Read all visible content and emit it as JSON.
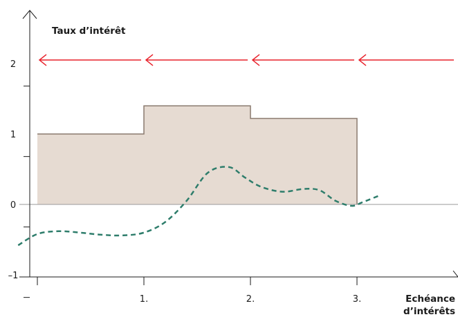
{
  "figure": {
    "y_axis_title": "Taux d’intérêt",
    "x_axis_title_line1": "Echéance",
    "x_axis_title_line2": "d’intérêts",
    "colors": {
      "axis": "#1a1a1a",
      "zero_line": "#999999",
      "area_fill": "#e6dbd2",
      "area_outline": "#8a7a6e",
      "arrow": "#e8202a",
      "dashed_curve": "#2e7d6b"
    }
  },
  "chart_data": {
    "type": "area",
    "y_ticks": [
      {
        "value": 2,
        "label": "2"
      },
      {
        "value": 1,
        "label": "1"
      },
      {
        "value": 0,
        "label": "0"
      },
      {
        "value": -1,
        "label": "–1"
      }
    ],
    "x_ticks": [
      {
        "value": 1,
        "label": "1."
      },
      {
        "value": 2,
        "label": "2."
      },
      {
        "value": 3,
        "label": "3."
      }
    ],
    "xlim": [
      0,
      4
    ],
    "ylim": [
      -1.3,
      2.4
    ],
    "step_rate": [
      {
        "from": 0,
        "to": 1,
        "value": 1.0
      },
      {
        "from": 1,
        "to": 2,
        "value": 1.4
      },
      {
        "from": 2,
        "to": 3,
        "value": 1.22
      }
    ],
    "dashed_curve": {
      "x": [
        -0.18,
        0,
        0.2,
        0.4,
        0.6,
        0.8,
        1.0,
        1.2,
        1.4,
        1.6,
        1.8,
        1.95,
        2.1,
        2.3,
        2.5,
        2.65,
        2.8,
        2.95,
        3.05,
        3.2
      ],
      "y": [
        -0.58,
        -0.42,
        -0.38,
        -0.4,
        -0.43,
        -0.44,
        -0.4,
        -0.25,
        0.05,
        0.45,
        0.53,
        0.38,
        0.25,
        0.18,
        0.22,
        0.2,
        0.05,
        -0.02,
        0.03,
        0.12
      ]
    },
    "arrows": {
      "y": 2.05,
      "segments": [
        {
          "from": 0,
          "to": 1
        },
        {
          "from": 1,
          "to": 2
        },
        {
          "from": 2,
          "to": 3
        },
        {
          "from": 3,
          "to": 4
        }
      ]
    }
  }
}
